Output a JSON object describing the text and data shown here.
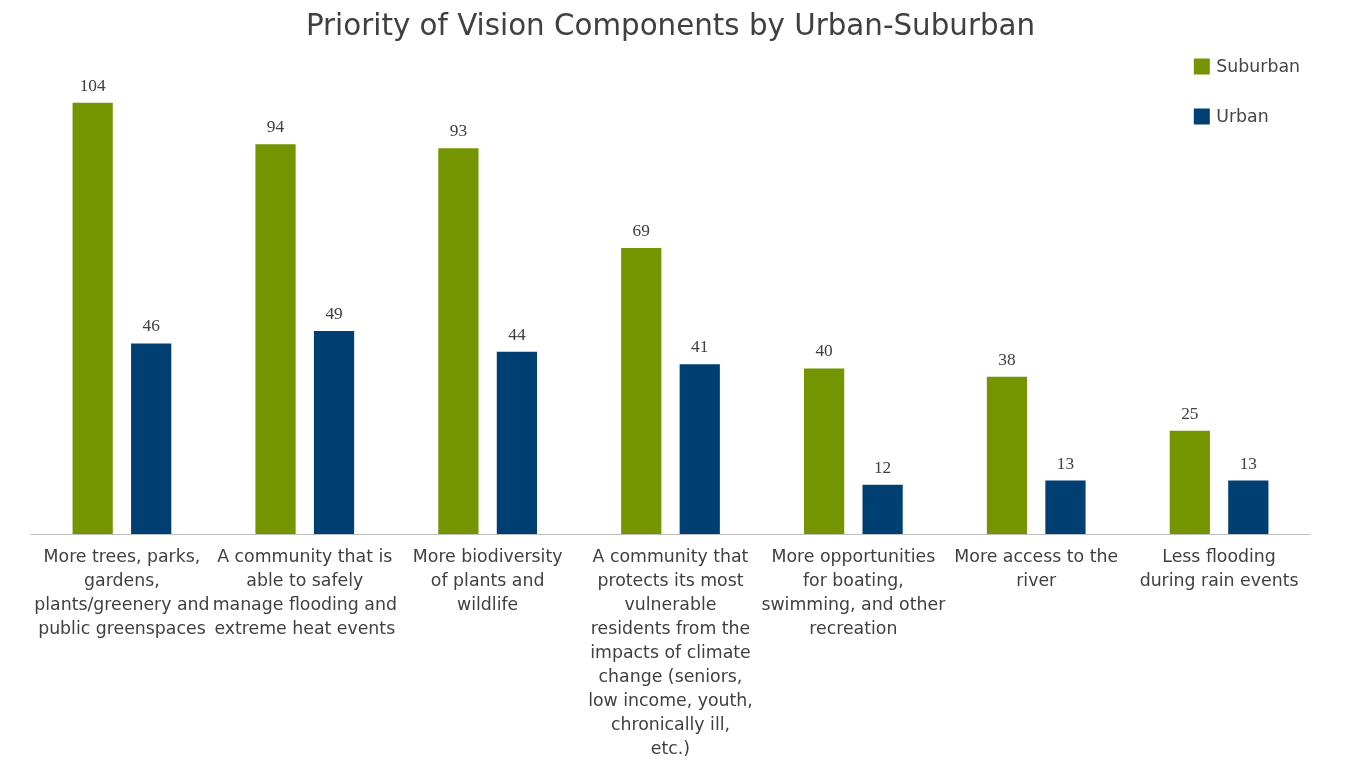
{
  "chart_data": {
    "type": "bar",
    "title": "Priority of Vision Components by Urban-Suburban",
    "categories": [
      "More trees, parks, gardens, plants/greenery and public greenspaces",
      "A community that is able to safely manage flooding and extreme heat events",
      "More biodiversity of plants and wildlife",
      "A community that protects its most vulnerable residents from the impacts of climate change (seniors, low income, youth, chronically ill, etc.)",
      "More opportunities for boating, swimming, and other recreation",
      "More access to the river",
      "Less flooding during rain events"
    ],
    "series": [
      {
        "name": "Suburban",
        "color": "#759500",
        "values": [
          104,
          94,
          93,
          69,
          40,
          38,
          25
        ]
      },
      {
        "name": "Urban",
        "color": "#003f72",
        "values": [
          46,
          49,
          44,
          41,
          12,
          13,
          13
        ]
      }
    ],
    "data_labels": true,
    "legend": "top right",
    "grid": false
  }
}
